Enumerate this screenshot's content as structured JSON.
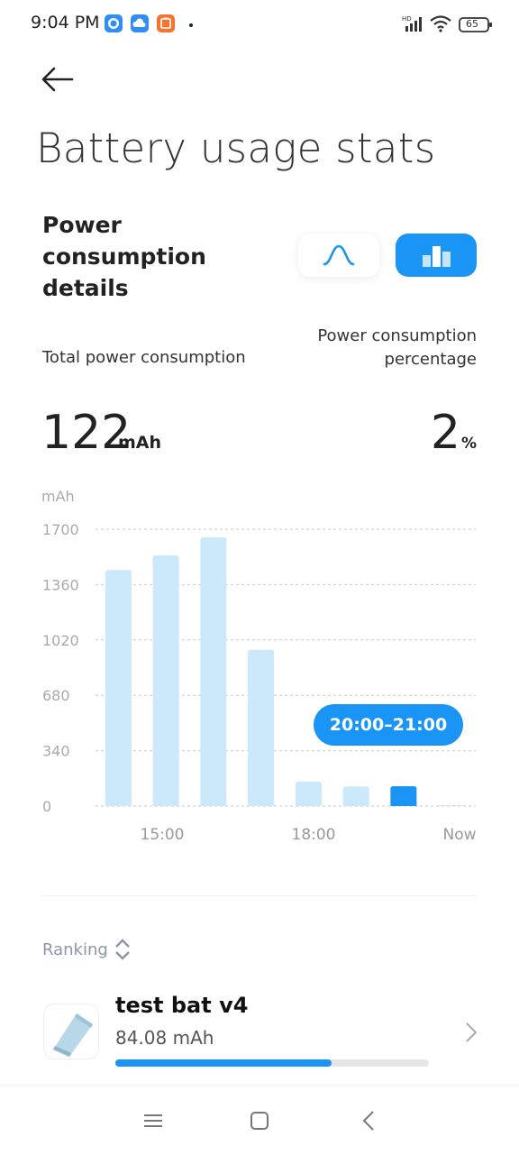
{
  "status_bar": {
    "time": "9:04 PM",
    "icons": [
      "messenger-icon",
      "cloud-icon",
      "mi-store-icon"
    ],
    "right_icons": [
      "hd-signal-icon",
      "wifi-icon",
      "battery-icon"
    ],
    "battery_level": "65"
  },
  "header": {
    "back_icon": "back-arrow-icon",
    "title": "Battery usage stats"
  },
  "section": {
    "title": "Power consumption details",
    "view_toggle": [
      {
        "name": "curve-view",
        "icon": "curve-icon",
        "selected": false
      },
      {
        "name": "bar-view",
        "icon": "bar-chart-icon",
        "selected": true
      }
    ],
    "total_label": "Total power consumption",
    "percentage_label_line1": "Power consumption",
    "percentage_label_line2": "percentage",
    "total_value": "122",
    "total_unit": "mAh",
    "percentage_value": "2",
    "percentage_unit": "%"
  },
  "chart_data": {
    "type": "bar",
    "ylabel": "mAh",
    "ylim": [
      0,
      1700
    ],
    "y_ticks": [
      "1700",
      "1360",
      "1020",
      "680",
      "340",
      "0"
    ],
    "x_tick_labels": [
      "15:00",
      "18:00",
      "Now"
    ],
    "values": [
      1450,
      1540,
      1650,
      960,
      150,
      120,
      122,
      5
    ],
    "selected_index": 6,
    "tooltip": "20:00–21:00",
    "bar_color": "#cce8fb",
    "selected_color": "#1a95f5"
  },
  "ranking": {
    "label": "Ranking",
    "icon": "sort-icon"
  },
  "apps": [
    {
      "name": "test bat v4",
      "usage": "84.08 mAh",
      "share": 0.69
    }
  ],
  "nav": [
    "menu-icon",
    "home-icon",
    "back-icon"
  ]
}
